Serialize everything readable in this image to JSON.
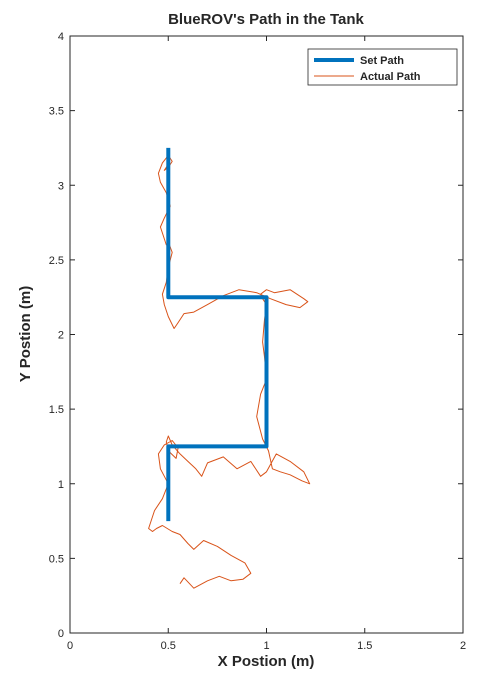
{
  "chart_data": {
    "type": "line",
    "title": "BlueROV's Path in the Tank",
    "xlabel": "X Postion (m)",
    "ylabel": "Y Postion (m)",
    "xlim": [
      0,
      2
    ],
    "ylim": [
      0,
      4
    ],
    "xticks": [
      0,
      0.5,
      1,
      1.5,
      2
    ],
    "xtick_labels": [
      "0",
      "0.5",
      "1",
      "1.5",
      "2"
    ],
    "yticks": [
      0,
      0.5,
      1,
      1.5,
      2,
      2.5,
      3,
      3.5,
      4
    ],
    "ytick_labels": [
      "0",
      "0.5",
      "1",
      "1.5",
      "2",
      "2.5",
      "3",
      "3.5",
      "4"
    ],
    "grid": false,
    "legend_position": "top-right",
    "series": [
      {
        "name": "Set Path",
        "color": "#0072BD",
        "x": [
          0.5,
          0.5,
          1.0,
          1.0,
          0.5,
          0.5
        ],
        "y": [
          0.75,
          1.25,
          1.25,
          2.25,
          2.25,
          3.25
        ]
      },
      {
        "name": "Actual Path",
        "color": "#D95319",
        "x": [
          0.56,
          0.58,
          0.63,
          0.7,
          0.76,
          0.82,
          0.88,
          0.92,
          0.89,
          0.82,
          0.75,
          0.68,
          0.63,
          0.6,
          0.56,
          0.52,
          0.47,
          0.44,
          0.42,
          0.4,
          0.43,
          0.47,
          0.5,
          0.46,
          0.45,
          0.48,
          0.52,
          0.55,
          0.54,
          0.5,
          0.49,
          0.5,
          0.52,
          0.56,
          0.6,
          0.64,
          0.67,
          0.7,
          0.78,
          0.85,
          0.92,
          0.97,
          1.0,
          1.05,
          1.12,
          1.19,
          1.22,
          1.18,
          1.12,
          1.07,
          1.03,
          1.01,
          0.98,
          0.95,
          0.97,
          1.0,
          0.99,
          0.98,
          0.99,
          1.0,
          0.98,
          0.97,
          1.0,
          1.04,
          1.12,
          1.19,
          1.21,
          1.17,
          1.1,
          1.02,
          0.95,
          0.86,
          0.78,
          0.7,
          0.63,
          0.58,
          0.55,
          0.53,
          0.5,
          0.48,
          0.47,
          0.49,
          0.5,
          0.52,
          0.5,
          0.49,
          0.47,
          0.46,
          0.48,
          0.51,
          0.49,
          0.46,
          0.45,
          0.47,
          0.5,
          0.52,
          0.5,
          0.48,
          0.5
        ],
        "y": [
          0.33,
          0.37,
          0.3,
          0.35,
          0.38,
          0.35,
          0.36,
          0.4,
          0.47,
          0.52,
          0.58,
          0.62,
          0.56,
          0.6,
          0.66,
          0.68,
          0.72,
          0.7,
          0.68,
          0.7,
          0.82,
          0.9,
          1.0,
          1.1,
          1.2,
          1.26,
          1.29,
          1.24,
          1.17,
          1.22,
          1.28,
          1.32,
          1.26,
          1.2,
          1.15,
          1.1,
          1.05,
          1.14,
          1.18,
          1.1,
          1.15,
          1.05,
          1.08,
          1.2,
          1.15,
          1.08,
          1.0,
          1.02,
          1.06,
          1.08,
          1.1,
          1.22,
          1.3,
          1.45,
          1.6,
          1.7,
          1.85,
          1.95,
          2.1,
          2.2,
          2.24,
          2.27,
          2.3,
          2.28,
          2.3,
          2.24,
          2.22,
          2.18,
          2.2,
          2.24,
          2.28,
          2.3,
          2.26,
          2.2,
          2.15,
          2.14,
          2.08,
          2.04,
          2.12,
          2.2,
          2.27,
          2.35,
          2.45,
          2.55,
          2.62,
          2.6,
          2.68,
          2.72,
          2.78,
          2.86,
          2.95,
          3.02,
          3.08,
          3.15,
          3.2,
          3.16,
          3.12,
          3.1,
          3.14
        ]
      }
    ]
  }
}
